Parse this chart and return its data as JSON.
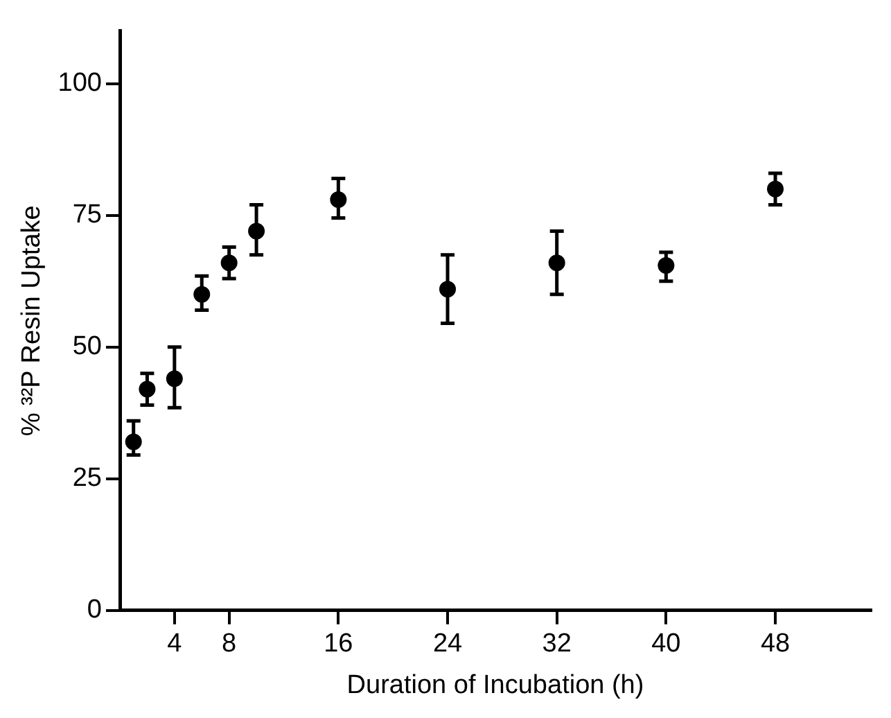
{
  "chart_data": {
    "type": "scatter",
    "xlabel": "Duration of Incubation (h)",
    "ylabel": "% ³²P Resin Uptake",
    "x": [
      1,
      2,
      4,
      6,
      8,
      10,
      16,
      24,
      32,
      40,
      48
    ],
    "values": [
      32,
      42,
      44,
      60,
      66,
      72,
      78,
      61,
      66,
      65.5,
      80
    ],
    "errors": [
      [
        29.5,
        36
      ],
      [
        39,
        45
      ],
      [
        38.5,
        50
      ],
      [
        57,
        63.5
      ],
      [
        63,
        69
      ],
      [
        67.5,
        77
      ],
      [
        74.5,
        82
      ],
      [
        54.5,
        67.5
      ],
      [
        60,
        72
      ],
      [
        62.5,
        68
      ],
      [
        77,
        83
      ]
    ],
    "color": "#000000",
    "marker": "circle",
    "grid": false,
    "legend": false,
    "xlim": [
      0,
      55
    ],
    "xticks": [
      4,
      8,
      16,
      24,
      32,
      40,
      48
    ],
    "ylim": [
      0,
      110
    ],
    "yticks": [
      0,
      25,
      50,
      75,
      100
    ]
  }
}
